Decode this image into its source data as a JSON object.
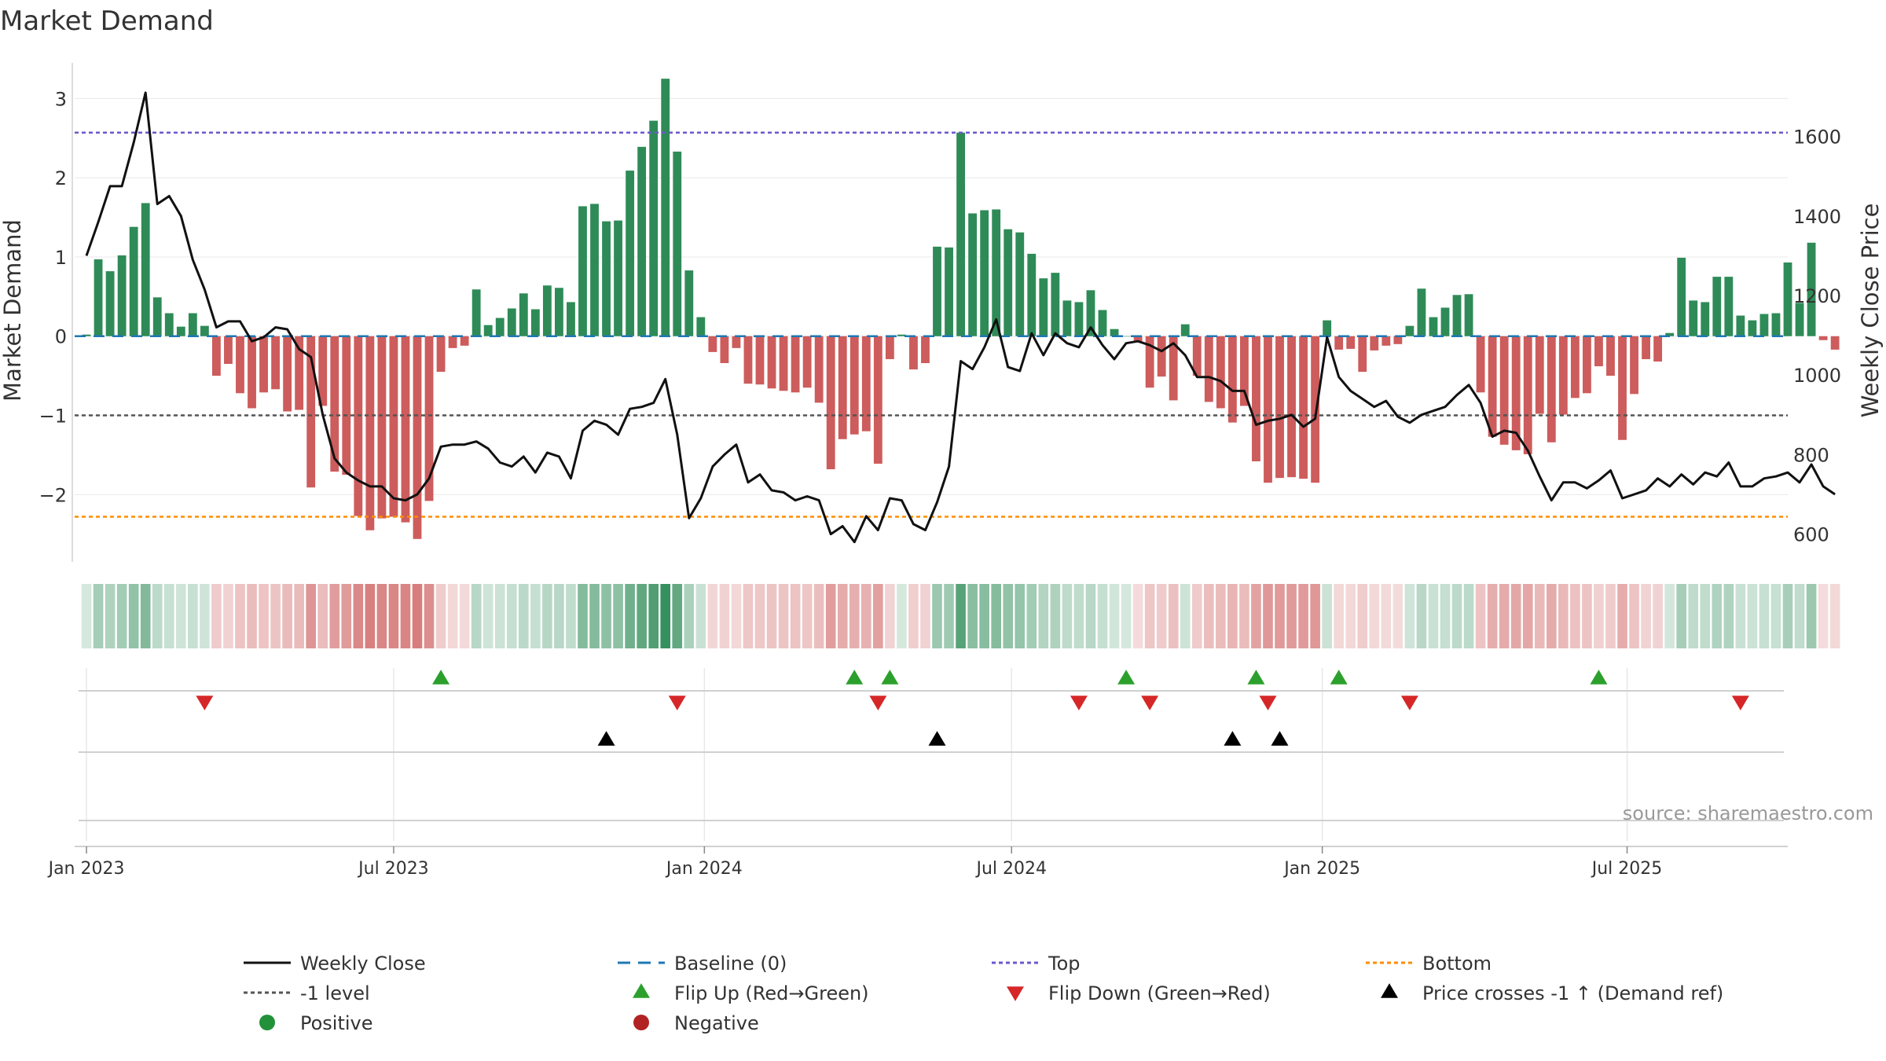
{
  "chart_data": {
    "type": "bar",
    "title": "Market Demand",
    "ylabel": "Market Demand",
    "y2label": "Weekly Close Price",
    "ylim": [
      -2.85,
      3.45
    ],
    "y2lim": [
      530,
      1785
    ],
    "yticks": [
      -2,
      -1,
      0,
      1,
      2,
      3
    ],
    "yticklabels": [
      "−2",
      "−1",
      "0",
      "1",
      "2",
      "3"
    ],
    "y2ticks": [
      600,
      800,
      1000,
      1200,
      1400,
      1600
    ],
    "y2ticklabels": [
      "600",
      "800",
      "1000",
      "1200",
      "1400",
      "1600"
    ],
    "x_start_week": -1,
    "x_end_week": 144,
    "xticks": [
      {
        "week": 0,
        "label": "Jan 2023"
      },
      {
        "week": 26,
        "label": "Jul 2023"
      },
      {
        "week": 52.3,
        "label": "Jan 2024"
      },
      {
        "week": 78.3,
        "label": "Jul 2024"
      },
      {
        "week": 104.6,
        "label": "Jan 2025"
      },
      {
        "week": 130.4,
        "label": "Jul 2025"
      }
    ],
    "demand": [
      0.02,
      0.97,
      0.82,
      1.02,
      1.38,
      1.68,
      0.49,
      0.29,
      0.12,
      0.29,
      0.13,
      -0.5,
      -0.35,
      -0.72,
      -0.91,
      -0.71,
      -0.67,
      -0.95,
      -0.93,
      -1.91,
      -0.88,
      -1.71,
      -1.75,
      -2.27,
      -2.45,
      -2.3,
      -2.28,
      -2.35,
      -2.56,
      -2.08,
      -0.45,
      -0.15,
      -0.12,
      0.59,
      0.14,
      0.23,
      0.35,
      0.54,
      0.34,
      0.64,
      0.61,
      0.43,
      1.64,
      1.67,
      1.45,
      1.46,
      2.09,
      2.39,
      2.72,
      3.25,
      2.33,
      0.83,
      0.24,
      -0.2,
      -0.34,
      -0.15,
      -0.6,
      -0.61,
      -0.66,
      -0.69,
      -0.71,
      -0.65,
      -0.84,
      -1.68,
      -1.3,
      -1.24,
      -1.2,
      -1.61,
      -0.29,
      0.02,
      -0.42,
      -0.34,
      1.13,
      1.12,
      2.57,
      1.55,
      1.59,
      1.6,
      1.35,
      1.31,
      1.04,
      0.73,
      0.8,
      0.45,
      0.43,
      0.58,
      0.33,
      0.09,
      0,
      -0.07,
      -0.65,
      -0.51,
      -0.81,
      0.15,
      -0.5,
      -0.83,
      -0.91,
      -1.09,
      -0.88,
      -1.58,
      -1.85,
      -1.79,
      -1.78,
      -1.8,
      -1.85,
      0.2,
      -0.17,
      -0.16,
      -0.45,
      -0.18,
      -0.12,
      -0.1,
      0.13,
      0.6,
      0.24,
      0.36,
      0.52,
      0.53,
      -0.71,
      -1.27,
      -1.37,
      -1.44,
      -1.49,
      -0.98,
      -1.34,
      -0.99,
      -0.78,
      -0.72,
      -0.38,
      -0.5,
      -1.31,
      -0.73,
      -0.29,
      -0.32,
      0.04,
      0.99,
      0.45,
      0.43,
      0.75,
      0.75,
      0.26,
      0.2,
      0.28,
      0.29,
      0.93,
      0.42,
      1.18,
      -0.05,
      -0.17
    ],
    "price": [
      1300,
      1385,
      1475,
      1475,
      1585,
      1710,
      1430,
      1450,
      1400,
      1290,
      1215,
      1120,
      1135,
      1135,
      1085,
      1095,
      1120,
      1115,
      1065,
      1045,
      900,
      790,
      755,
      735,
      720,
      720,
      690,
      685,
      700,
      740,
      820,
      825,
      825,
      833,
      815,
      780,
      770,
      795,
      755,
      805,
      795,
      740,
      860,
      885,
      875,
      850,
      915,
      920,
      930,
      990,
      850,
      640,
      690,
      770,
      800,
      825,
      730,
      750,
      710,
      705,
      685,
      695,
      685,
      600,
      620,
      580,
      645,
      610,
      690,
      685,
      625,
      610,
      680,
      770,
      1035,
      1015,
      1070,
      1140,
      1020,
      1010,
      1105,
      1050,
      1105,
      1080,
      1070,
      1120,
      1075,
      1040,
      1080,
      1085,
      1075,
      1060,
      1080,
      1050,
      995,
      995,
      985,
      960,
      960,
      875,
      885,
      890,
      900,
      870,
      890,
      1095,
      995,
      960,
      940,
      920,
      935,
      895,
      880,
      900,
      910,
      920,
      950,
      975,
      930,
      845,
      860,
      855,
      810,
      745,
      685,
      730,
      730,
      715,
      735,
      760,
      690,
      700,
      710,
      740,
      720,
      750,
      725,
      755,
      745,
      780,
      720,
      720,
      740,
      745,
      755,
      730,
      775,
      720,
      700
    ],
    "baseline": 0,
    "top_level": 2.57,
    "minus_one_level": -1,
    "bottom_level": -2.28,
    "flip_up_weeks": [
      30,
      65,
      68,
      88,
      99,
      106,
      128
    ],
    "flip_down_weeks": [
      10,
      50,
      67,
      84,
      90,
      100,
      112,
      140
    ],
    "price_cross_weeks": [
      44,
      72,
      97,
      101
    ],
    "source": "source: sharemaestro.com",
    "legend": [
      {
        "key": "weekly-close",
        "label": "Weekly Close"
      },
      {
        "key": "baseline",
        "label": "Baseline (0)"
      },
      {
        "key": "top",
        "label": "Top"
      },
      {
        "key": "bottom",
        "label": "Bottom"
      },
      {
        "key": "minus-one",
        "label": "-1 level"
      },
      {
        "key": "flip-up",
        "label": "Flip Up (Red→Green)"
      },
      {
        "key": "flip-down",
        "label": "Flip Down (Green→Red)"
      },
      {
        "key": "price-cross",
        "label": "Price crosses -1 ↑ (Demand ref)"
      },
      {
        "key": "positive",
        "label": "Positive"
      },
      {
        "key": "negative",
        "label": "Negative"
      }
    ]
  },
  "colors": {
    "positive_bar": "#2e8b57",
    "negative_bar": "#cd5c5c",
    "price_line": "#111111",
    "baseline": "#1f77b4",
    "top": "#6a5acd",
    "bottom": "#ff8c00",
    "minus_one": "#555555",
    "flip_up": "#2ca02c",
    "flip_down": "#d62728",
    "cross": "#000000",
    "positive_dot": "#22913a",
    "negative_dot": "#b22222",
    "grid": "#e8e8e8",
    "axis": "#d0d0d0",
    "text": "#333333"
  }
}
